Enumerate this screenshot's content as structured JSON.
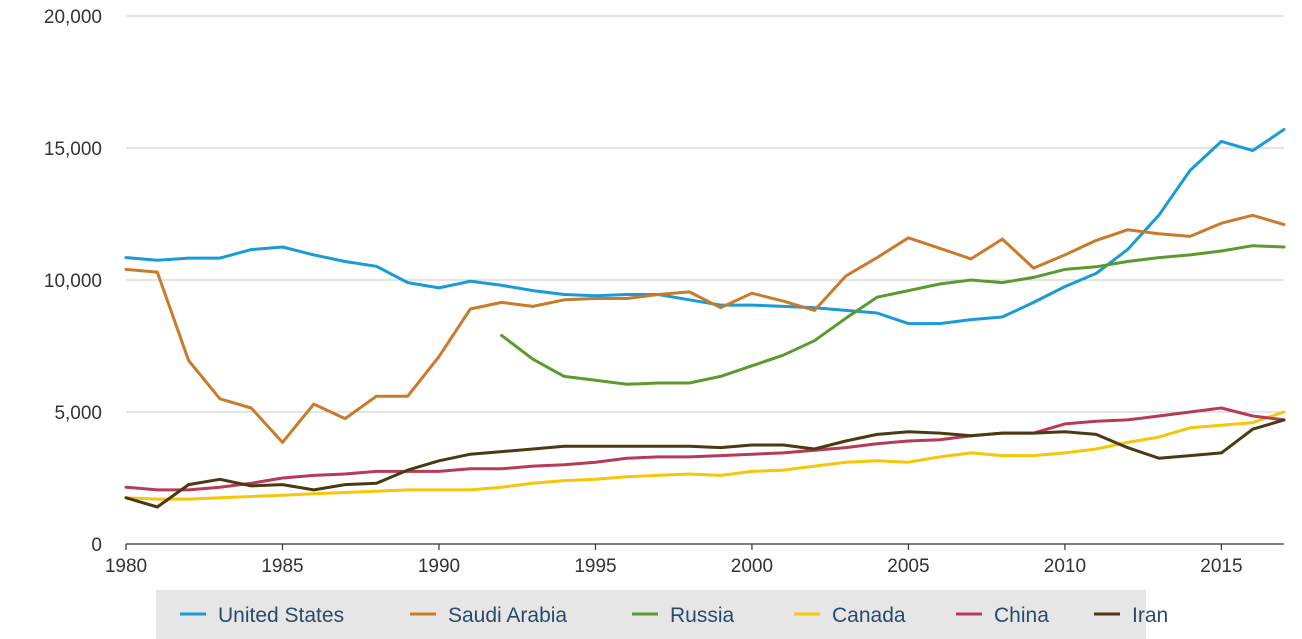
{
  "chart_data": {
    "type": "line",
    "title": "",
    "xlabel": "",
    "ylabel": "",
    "xlim": [
      1980,
      2017
    ],
    "ylim": [
      0,
      20000
    ],
    "x_ticks": [
      1980,
      1985,
      1990,
      1995,
      2000,
      2005,
      2010,
      2015
    ],
    "x_tick_labels": [
      "1980",
      "1985",
      "1990",
      "1995",
      "2000",
      "2005",
      "2010",
      "2015"
    ],
    "y_ticks": [
      0,
      5000,
      10000,
      15000,
      20000
    ],
    "y_tick_labels": [
      "0",
      "5,000",
      "10,000",
      "15,000",
      "20,000"
    ],
    "grid": true,
    "legend_position": "bottom",
    "x": [
      1980,
      1981,
      1982,
      1983,
      1984,
      1985,
      1986,
      1987,
      1988,
      1989,
      1990,
      1991,
      1992,
      1993,
      1994,
      1995,
      1996,
      1997,
      1998,
      1999,
      2000,
      2001,
      2002,
      2003,
      2004,
      2005,
      2006,
      2007,
      2008,
      2009,
      2010,
      2011,
      2012,
      2013,
      2014,
      2015,
      2016,
      2017
    ],
    "series": [
      {
        "name": "United States",
        "color": "#1a9ad6",
        "values": [
          10850,
          10750,
          10830,
          10830,
          11150,
          11250,
          10950,
          10700,
          10520,
          9900,
          9700,
          9950,
          9800,
          9600,
          9450,
          9400,
          9450,
          9450,
          9250,
          9050,
          9050,
          9000,
          8950,
          8850,
          8750,
          8350,
          8350,
          8500,
          8600,
          9150,
          9750,
          10250,
          11150,
          12450,
          14150,
          15250,
          14900,
          15700
        ]
      },
      {
        "name": "Saudi Arabia",
        "color": "#c97a2a",
        "values": [
          10400,
          10300,
          6950,
          5500,
          5150,
          3850,
          5300,
          4750,
          5600,
          5600,
          7100,
          8900,
          9150,
          9000,
          9250,
          9300,
          9300,
          9450,
          9550,
          8950,
          9500,
          9200,
          8850,
          10150,
          10850,
          11600,
          11200,
          10800,
          11550,
          10450,
          10950,
          11500,
          11900,
          11750,
          11650,
          12150,
          12450,
          12100
        ]
      },
      {
        "name": "Russia",
        "color": "#5b9b2e",
        "values": [
          null,
          null,
          null,
          null,
          null,
          null,
          null,
          null,
          null,
          null,
          null,
          null,
          7900,
          7000,
          6350,
          6200,
          6050,
          6100,
          6100,
          6350,
          6750,
          7150,
          7700,
          8550,
          9350,
          9600,
          9850,
          10000,
          9900,
          10100,
          10400,
          10500,
          10700,
          10850,
          10950,
          11100,
          11300,
          11250
        ]
      },
      {
        "name": "Canada",
        "color": "#f5c60a",
        "values": [
          1750,
          1700,
          1700,
          1750,
          1800,
          1850,
          1900,
          1950,
          2000,
          2050,
          2050,
          2050,
          2150,
          2300,
          2400,
          2450,
          2550,
          2600,
          2650,
          2600,
          2750,
          2800,
          2950,
          3100,
          3150,
          3100,
          3300,
          3450,
          3350,
          3350,
          3450,
          3600,
          3850,
          4050,
          4400,
          4500,
          4600,
          5000
        ]
      },
      {
        "name": "China",
        "color": "#b53b57",
        "values": [
          2150,
          2050,
          2050,
          2150,
          2300,
          2500,
          2600,
          2650,
          2750,
          2750,
          2750,
          2850,
          2850,
          2950,
          3000,
          3100,
          3250,
          3300,
          3300,
          3350,
          3400,
          3450,
          3550,
          3650,
          3800,
          3900,
          3950,
          4100,
          4200,
          4200,
          4550,
          4650,
          4700,
          4850,
          5000,
          5150,
          4850,
          4700
        ]
      },
      {
        "name": "Iran",
        "color": "#4a3a12",
        "values": [
          1750,
          1400,
          2250,
          2450,
          2200,
          2250,
          2050,
          2250,
          2300,
          2800,
          3150,
          3400,
          3500,
          3600,
          3700,
          3700,
          3700,
          3700,
          3700,
          3650,
          3750,
          3750,
          3600,
          3900,
          4150,
          4250,
          4200,
          4100,
          4200,
          4200,
          4250,
          4150,
          3650,
          3250,
          3350,
          3450,
          4350,
          4700
        ]
      }
    ]
  }
}
